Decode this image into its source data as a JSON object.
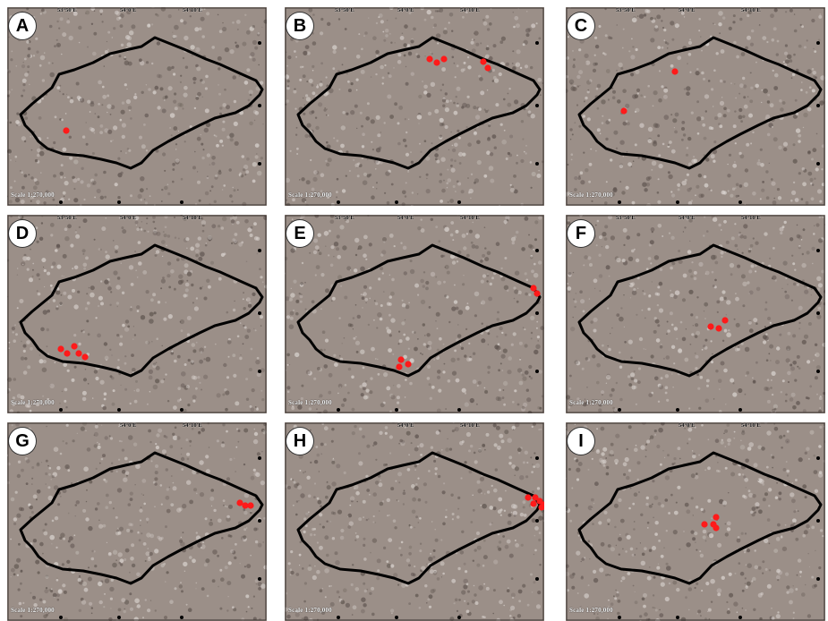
{
  "scale_label": "Scale 1:270,000",
  "longitude_ticks": [
    "53°50'E",
    "54°0'E",
    "54°10'E"
  ],
  "latitude_ticks": [
    "36°10'N",
    "36°0'N"
  ],
  "colors": {
    "terrain": "#9b8f88",
    "boundary": "#000000",
    "marker": "#ff1a1a"
  },
  "panels": [
    {
      "letter": "A"
    },
    {
      "letter": "B"
    },
    {
      "letter": "C"
    },
    {
      "letter": "D"
    },
    {
      "letter": "E"
    },
    {
      "letter": "F"
    },
    {
      "letter": "G"
    },
    {
      "letter": "H"
    },
    {
      "letter": "I"
    }
  ]
}
